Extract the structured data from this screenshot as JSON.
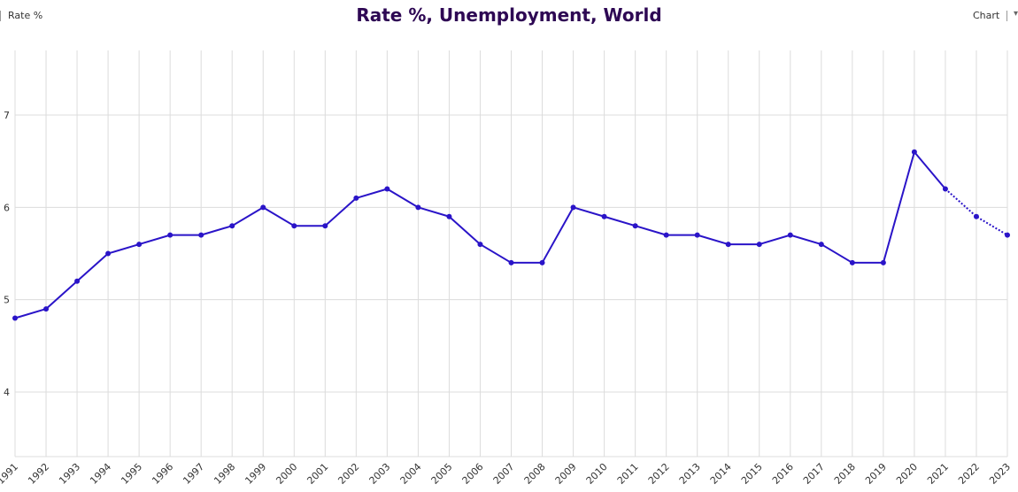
{
  "header": {
    "unit_label": "Rate %",
    "title": "Rate %, Unemployment, World",
    "chart_tab": "Chart",
    "caret": "▾"
  },
  "colors": {
    "line": "#2a14c8",
    "title": "#2e0854",
    "grid": "#dcdcdc"
  },
  "chart_data": {
    "type": "line",
    "title": "Rate %, Unemployment, World",
    "xlabel": "",
    "ylabel": "Rate %",
    "x": [
      "1991",
      "1992",
      "1993",
      "1994",
      "1995",
      "1996",
      "1997",
      "1998",
      "1999",
      "2000",
      "2001",
      "2002",
      "2003",
      "2004",
      "2005",
      "2006",
      "2007",
      "2008",
      "2009",
      "2010",
      "2011",
      "2012",
      "2013",
      "2014",
      "2015",
      "2016",
      "2017",
      "2018",
      "2019",
      "2020",
      "2021",
      "2022",
      "2023"
    ],
    "series": [
      {
        "values": [
          4.8,
          4.9,
          5.2,
          5.5,
          5.6,
          5.7,
          5.7,
          5.8,
          6.0,
          5.8,
          5.8,
          6.1,
          6.2,
          6.0,
          5.9,
          5.6,
          5.4,
          5.4,
          6.0,
          5.9,
          5.8,
          5.7,
          5.7,
          5.6,
          5.6,
          5.7,
          5.6,
          5.4,
          5.4,
          6.6,
          6.2,
          5.9,
          5.7
        ],
        "projected_from": "2021"
      }
    ],
    "yticks": [
      "4",
      "5",
      "6",
      "7"
    ],
    "ylim": [
      3.3,
      7.7
    ],
    "grid": true,
    "legend": "none"
  }
}
